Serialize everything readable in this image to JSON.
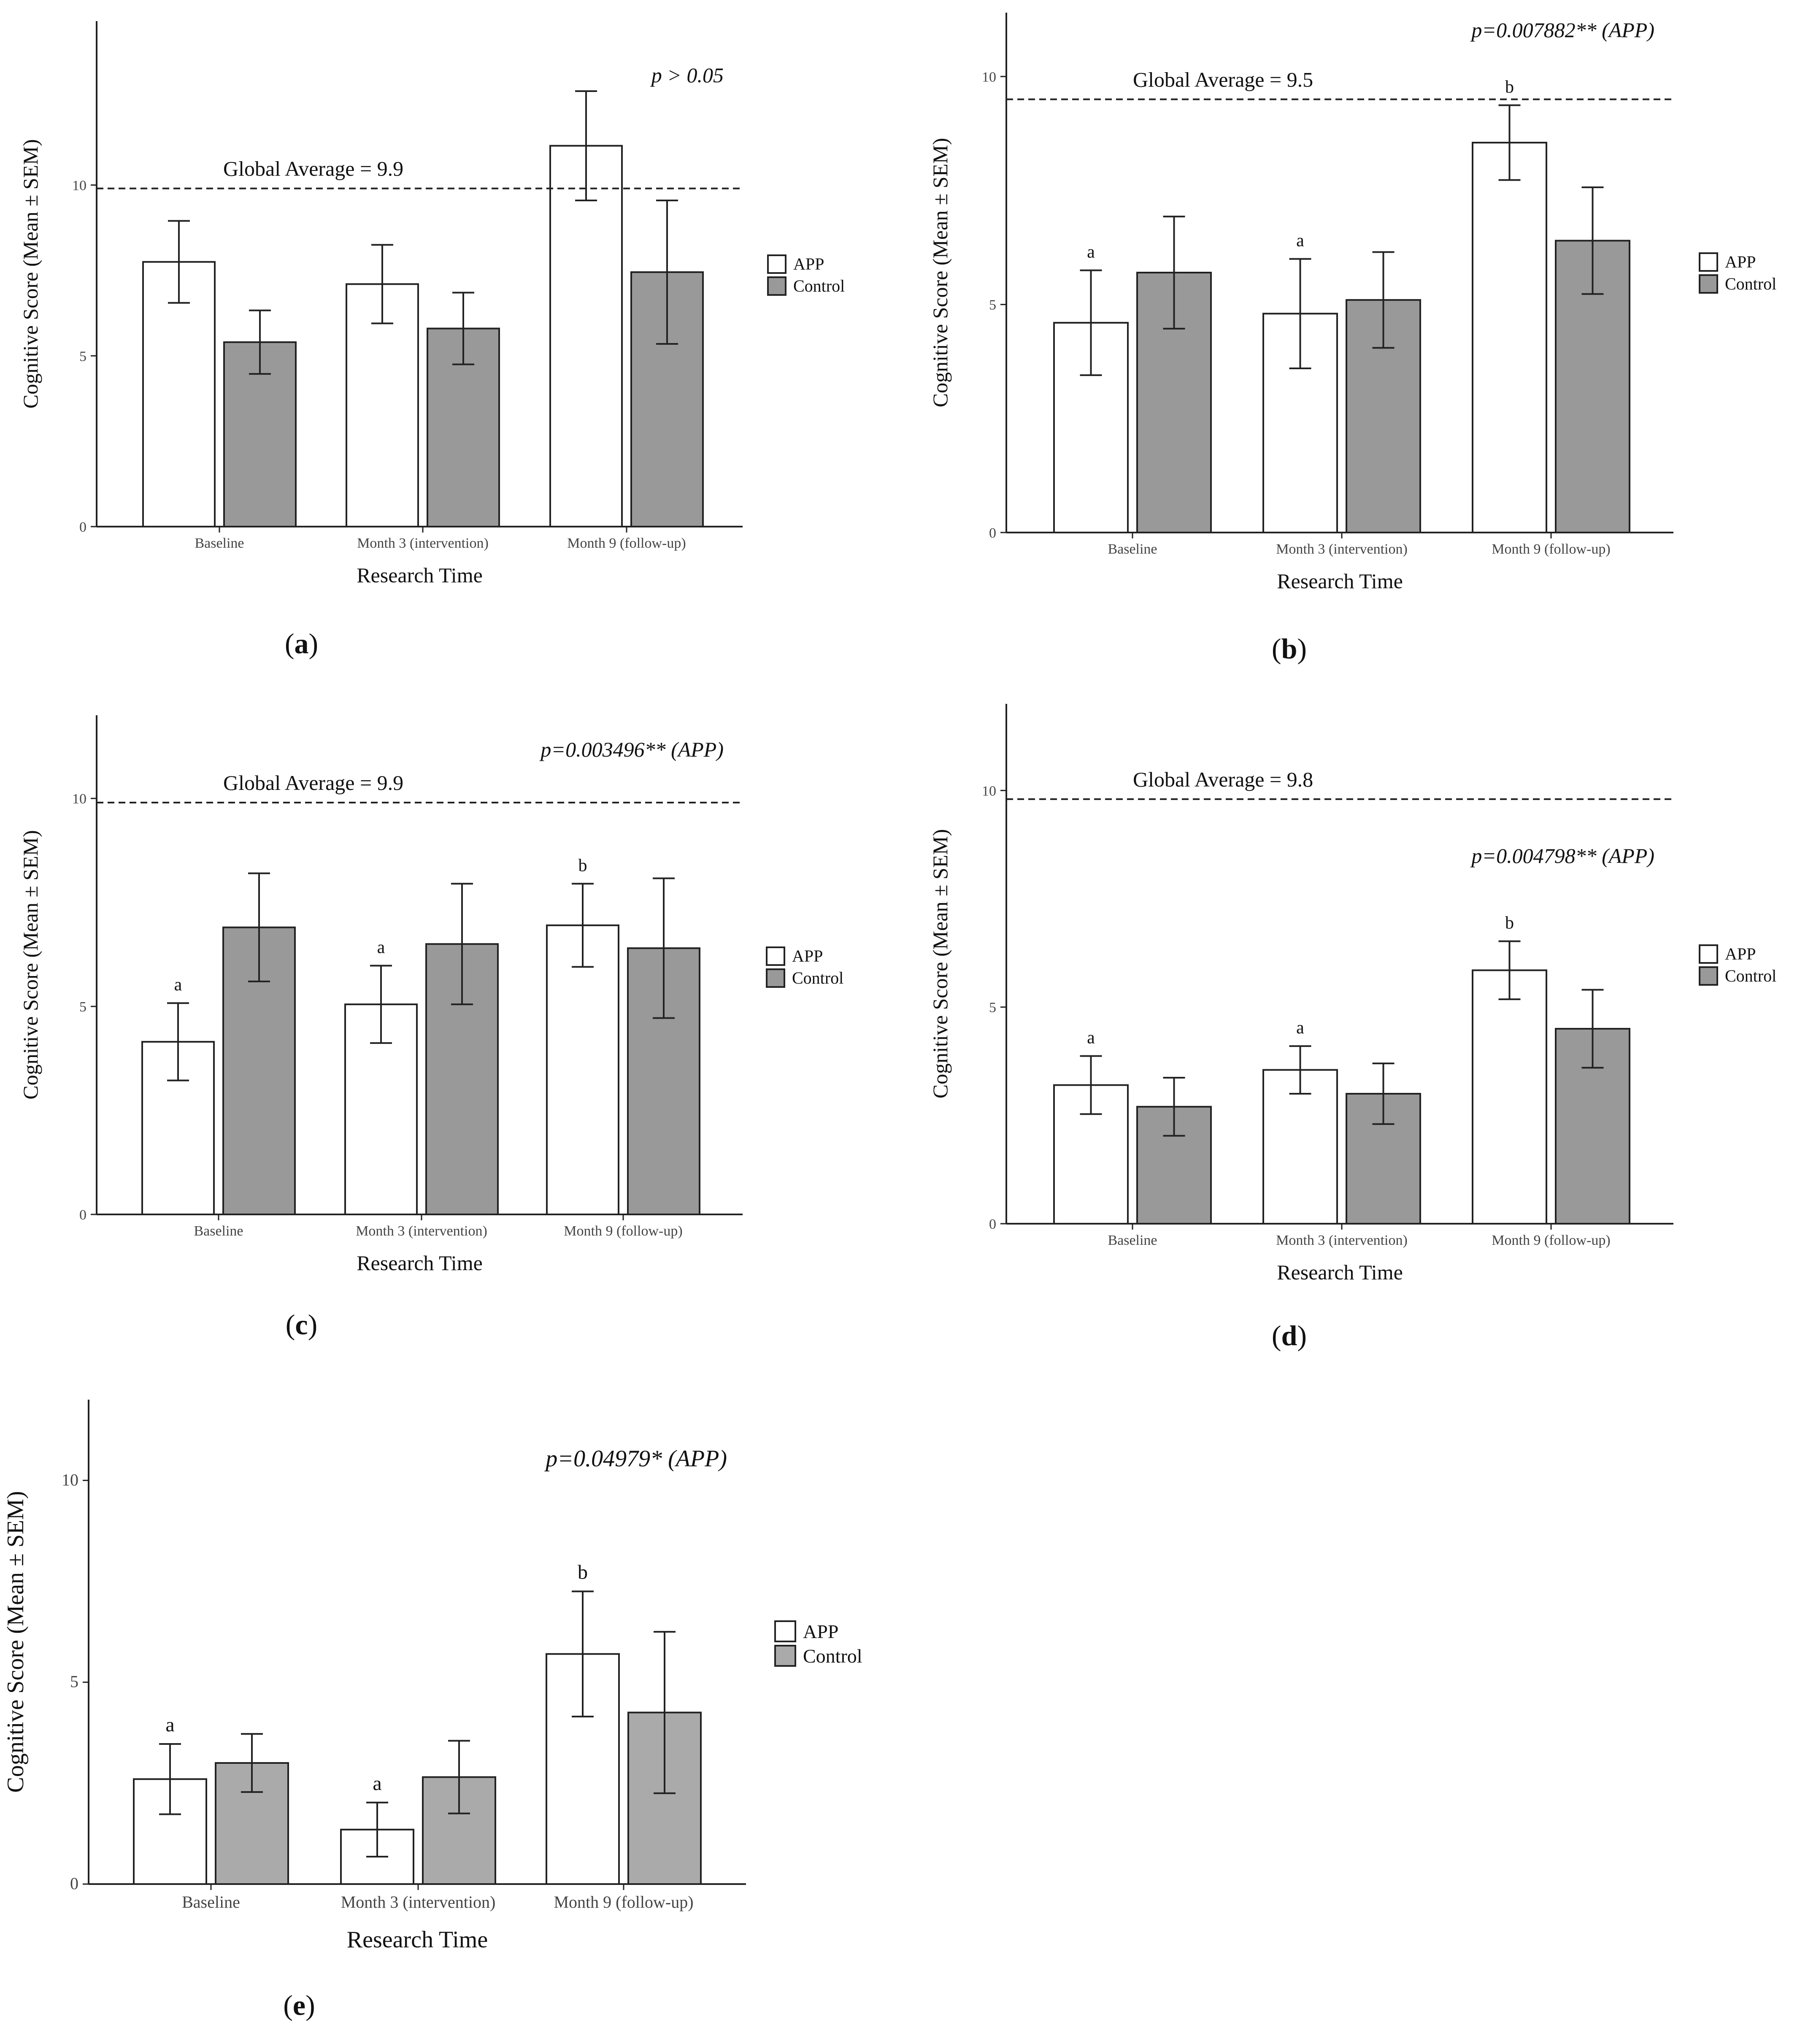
{
  "legend": {
    "app_label": "APP",
    "control_label": "Control"
  },
  "colors": {
    "app_fill": "#ffffff",
    "control_fill": "#999999",
    "control_fill_e": "#aaaaaa",
    "stroke": "#222222",
    "text": "#111111",
    "tick_text": "#444444"
  },
  "chart_data": [
    {
      "id": "a",
      "panel_label": "a",
      "type": "bar",
      "title": "",
      "xlabel": "Research Time",
      "ylabel": "Cognitive Score (Mean ± SEM)",
      "categories": [
        "Baseline",
        "Month 3 (intervention)",
        "Month 9 (follow-up)"
      ],
      "ylim": [
        0,
        14.8
      ],
      "yticks": [
        0,
        5,
        10
      ],
      "grid": false,
      "legend_position": "right",
      "series": [
        {
          "name": "APP",
          "values": [
            7.75,
            7.1,
            11.15
          ],
          "errors": [
            1.2,
            1.15,
            1.6
          ],
          "letters": [
            "",
            "",
            ""
          ]
        },
        {
          "name": "Control",
          "values": [
            5.4,
            5.8,
            7.45
          ],
          "errors": [
            0.93,
            1.05,
            2.1
          ],
          "letters": [
            "",
            "",
            ""
          ]
        }
      ],
      "reference_line": {
        "value": 9.9,
        "label": "Global Average = 9.9"
      },
      "p_value": "p > 0.05"
    },
    {
      "id": "b",
      "panel_label": "b",
      "type": "bar",
      "title": "",
      "xlabel": "Research Time",
      "ylabel": "Cognitive Score (Mean ± SEM)",
      "categories": [
        "Baseline",
        "Month 3 (intervention)",
        "Month 9 (follow-up)"
      ],
      "ylim": [
        0,
        11.4
      ],
      "yticks": [
        0,
        5,
        10
      ],
      "grid": false,
      "legend_position": "right",
      "series": [
        {
          "name": "APP",
          "values": [
            4.6,
            4.8,
            8.55
          ],
          "errors": [
            1.15,
            1.2,
            0.82
          ],
          "letters": [
            "a",
            "a",
            "b"
          ]
        },
        {
          "name": "Control",
          "values": [
            5.7,
            5.1,
            6.4
          ],
          "errors": [
            1.23,
            1.05,
            1.17
          ],
          "letters": [
            "",
            "",
            ""
          ]
        }
      ],
      "reference_line": {
        "value": 9.5,
        "label": "Global Average = 9.5"
      },
      "p_value": "p=0.007882** (APP)"
    },
    {
      "id": "c",
      "panel_label": "c",
      "type": "bar",
      "title": "",
      "xlabel": "Research Time",
      "ylabel": "Cognitive Score (Mean ± SEM)",
      "categories": [
        "Baseline",
        "Month 3 (intervention)",
        "Month 9 (follow-up)"
      ],
      "ylim": [
        0,
        12.0
      ],
      "yticks": [
        0,
        5,
        10
      ],
      "grid": false,
      "legend_position": "right",
      "series": [
        {
          "name": "APP",
          "values": [
            4.15,
            5.05,
            6.95
          ],
          "errors": [
            0.93,
            0.93,
            1.0
          ],
          "letters": [
            "a",
            "a",
            "b"
          ]
        },
        {
          "name": "Control",
          "values": [
            6.9,
            6.5,
            6.4
          ],
          "errors": [
            1.3,
            1.45,
            1.68
          ],
          "letters": [
            "",
            "",
            ""
          ]
        }
      ],
      "reference_line": {
        "value": 9.9,
        "label": "Global Average = 9.9"
      },
      "p_value": "p=0.003496** (APP)"
    },
    {
      "id": "d",
      "panel_label": "d",
      "type": "bar",
      "title": "",
      "xlabel": "Research Time",
      "ylabel": "Cognitive Score (Mean ± SEM)",
      "categories": [
        "Baseline",
        "Month 3 (intervention)",
        "Month 9 (follow-up)"
      ],
      "ylim": [
        0,
        12.0
      ],
      "yticks": [
        0,
        5,
        10
      ],
      "grid": false,
      "legend_position": "right",
      "series": [
        {
          "name": "APP",
          "values": [
            3.2,
            3.55,
            5.85
          ],
          "errors": [
            0.67,
            0.55,
            0.67
          ],
          "letters": [
            "a",
            "a",
            "b"
          ]
        },
        {
          "name": "Control",
          "values": [
            2.7,
            3.0,
            4.5
          ],
          "errors": [
            0.67,
            0.7,
            0.9
          ],
          "letters": [
            "",
            "",
            ""
          ]
        }
      ],
      "reference_line": {
        "value": 9.8,
        "label": "Global Average = 9.8"
      },
      "p_value": "p=0.004798** (APP)"
    },
    {
      "id": "e",
      "panel_label": "e",
      "type": "bar",
      "title": "",
      "xlabel": "Research Time",
      "ylabel": "Cognitive Score (Mean ± SEM)",
      "categories": [
        "Baseline",
        "Month 3 (intervention)",
        "Month 9 (follow-up)"
      ],
      "ylim": [
        0,
        12.0
      ],
      "yticks": [
        0,
        5,
        10
      ],
      "grid": false,
      "legend_position": "right",
      "series": [
        {
          "name": "APP",
          "values": [
            2.6,
            1.35,
            5.7
          ],
          "errors": [
            0.87,
            0.67,
            1.55
          ],
          "letters": [
            "a",
            "a",
            "b"
          ]
        },
        {
          "name": "Control",
          "values": [
            3.0,
            2.65,
            4.25
          ],
          "errors": [
            0.72,
            0.9,
            2.0
          ],
          "letters": [
            "",
            "",
            ""
          ]
        }
      ],
      "reference_line": null,
      "p_value": "p=0.04979* (APP)"
    }
  ]
}
